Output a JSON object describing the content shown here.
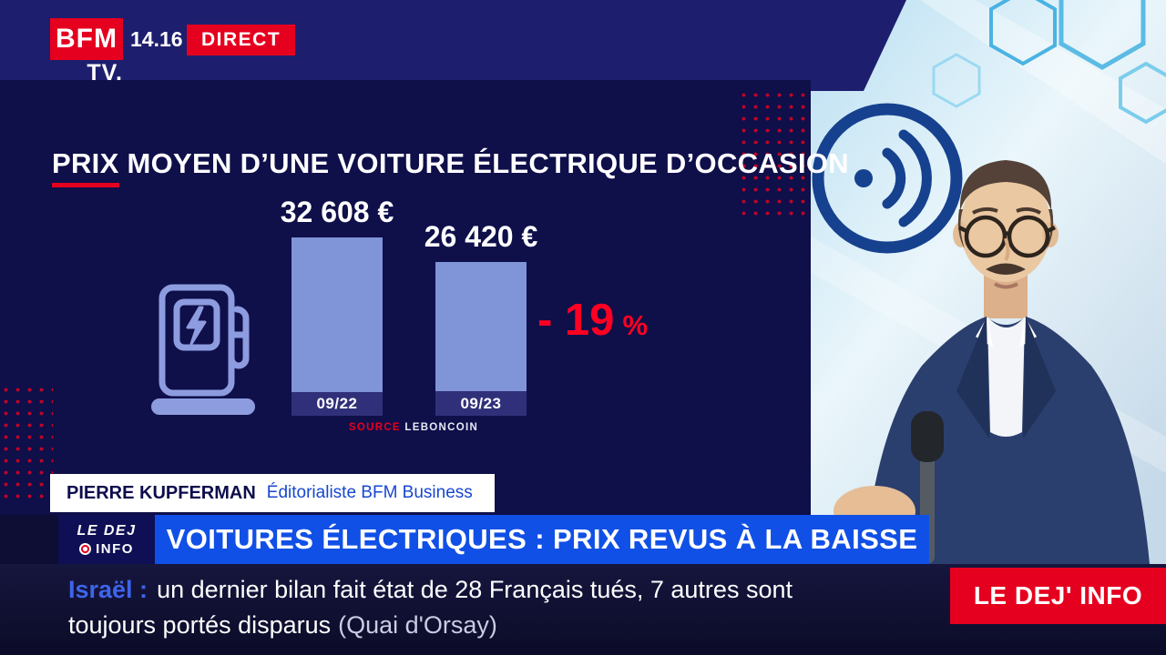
{
  "colors": {
    "bfm_red": "#e5001f",
    "panel_navy": "#0f0f4a",
    "top_strip_navy": "#1e1e6e",
    "banner_blue": "#1150e6",
    "bar_fill": "#8094d8",
    "bar_caption_bg": "#30307a",
    "delta_red": "#ff0022",
    "ticker_bg": "#16163e",
    "topic_blue": "#3e64ea"
  },
  "header": {
    "channel": "BFM",
    "channel_suffix": "TV.",
    "time": "14.16",
    "live_label": "DIRECT"
  },
  "chart_data": {
    "type": "bar",
    "title": "PRIX MOYEN D’UNE VOITURE ÉLECTRIQUE D’OCCASION",
    "title_highlight": "PRIX",
    "title_rest": " MOYEN D’UNE VOITURE ÉLECTRIQUE D’OCCASION",
    "categories": [
      "09/22",
      "09/23"
    ],
    "values": [
      32608,
      26420
    ],
    "value_labels": [
      "32 608 €",
      "26 420 €"
    ],
    "delta_value": "- 19",
    "delta_unit": "%",
    "source_prefix": "SOURCE",
    "source_name": "LEBONCOIN",
    "ylim": [
      0,
      32608
    ],
    "ylabel": "",
    "xlabel": ""
  },
  "speaker": {
    "name": "PIERRE KUPFERMAN",
    "role": "Éditorialiste BFM Business"
  },
  "banner": {
    "logo_line1": "LE DEJ",
    "logo_line2": "INFO",
    "headline": "VOITURES ÉLECTRIQUES : PRIX REVUS À LA BAISSE"
  },
  "ticker": {
    "topic": "Israël :",
    "line1": "un dernier bilan fait état de 28 Français tués, 7 autres sont",
    "line2": "toujours portés disparus",
    "line2_suffix": "(Quai d'Orsay)",
    "badge": "LE DEJ' INFO"
  }
}
